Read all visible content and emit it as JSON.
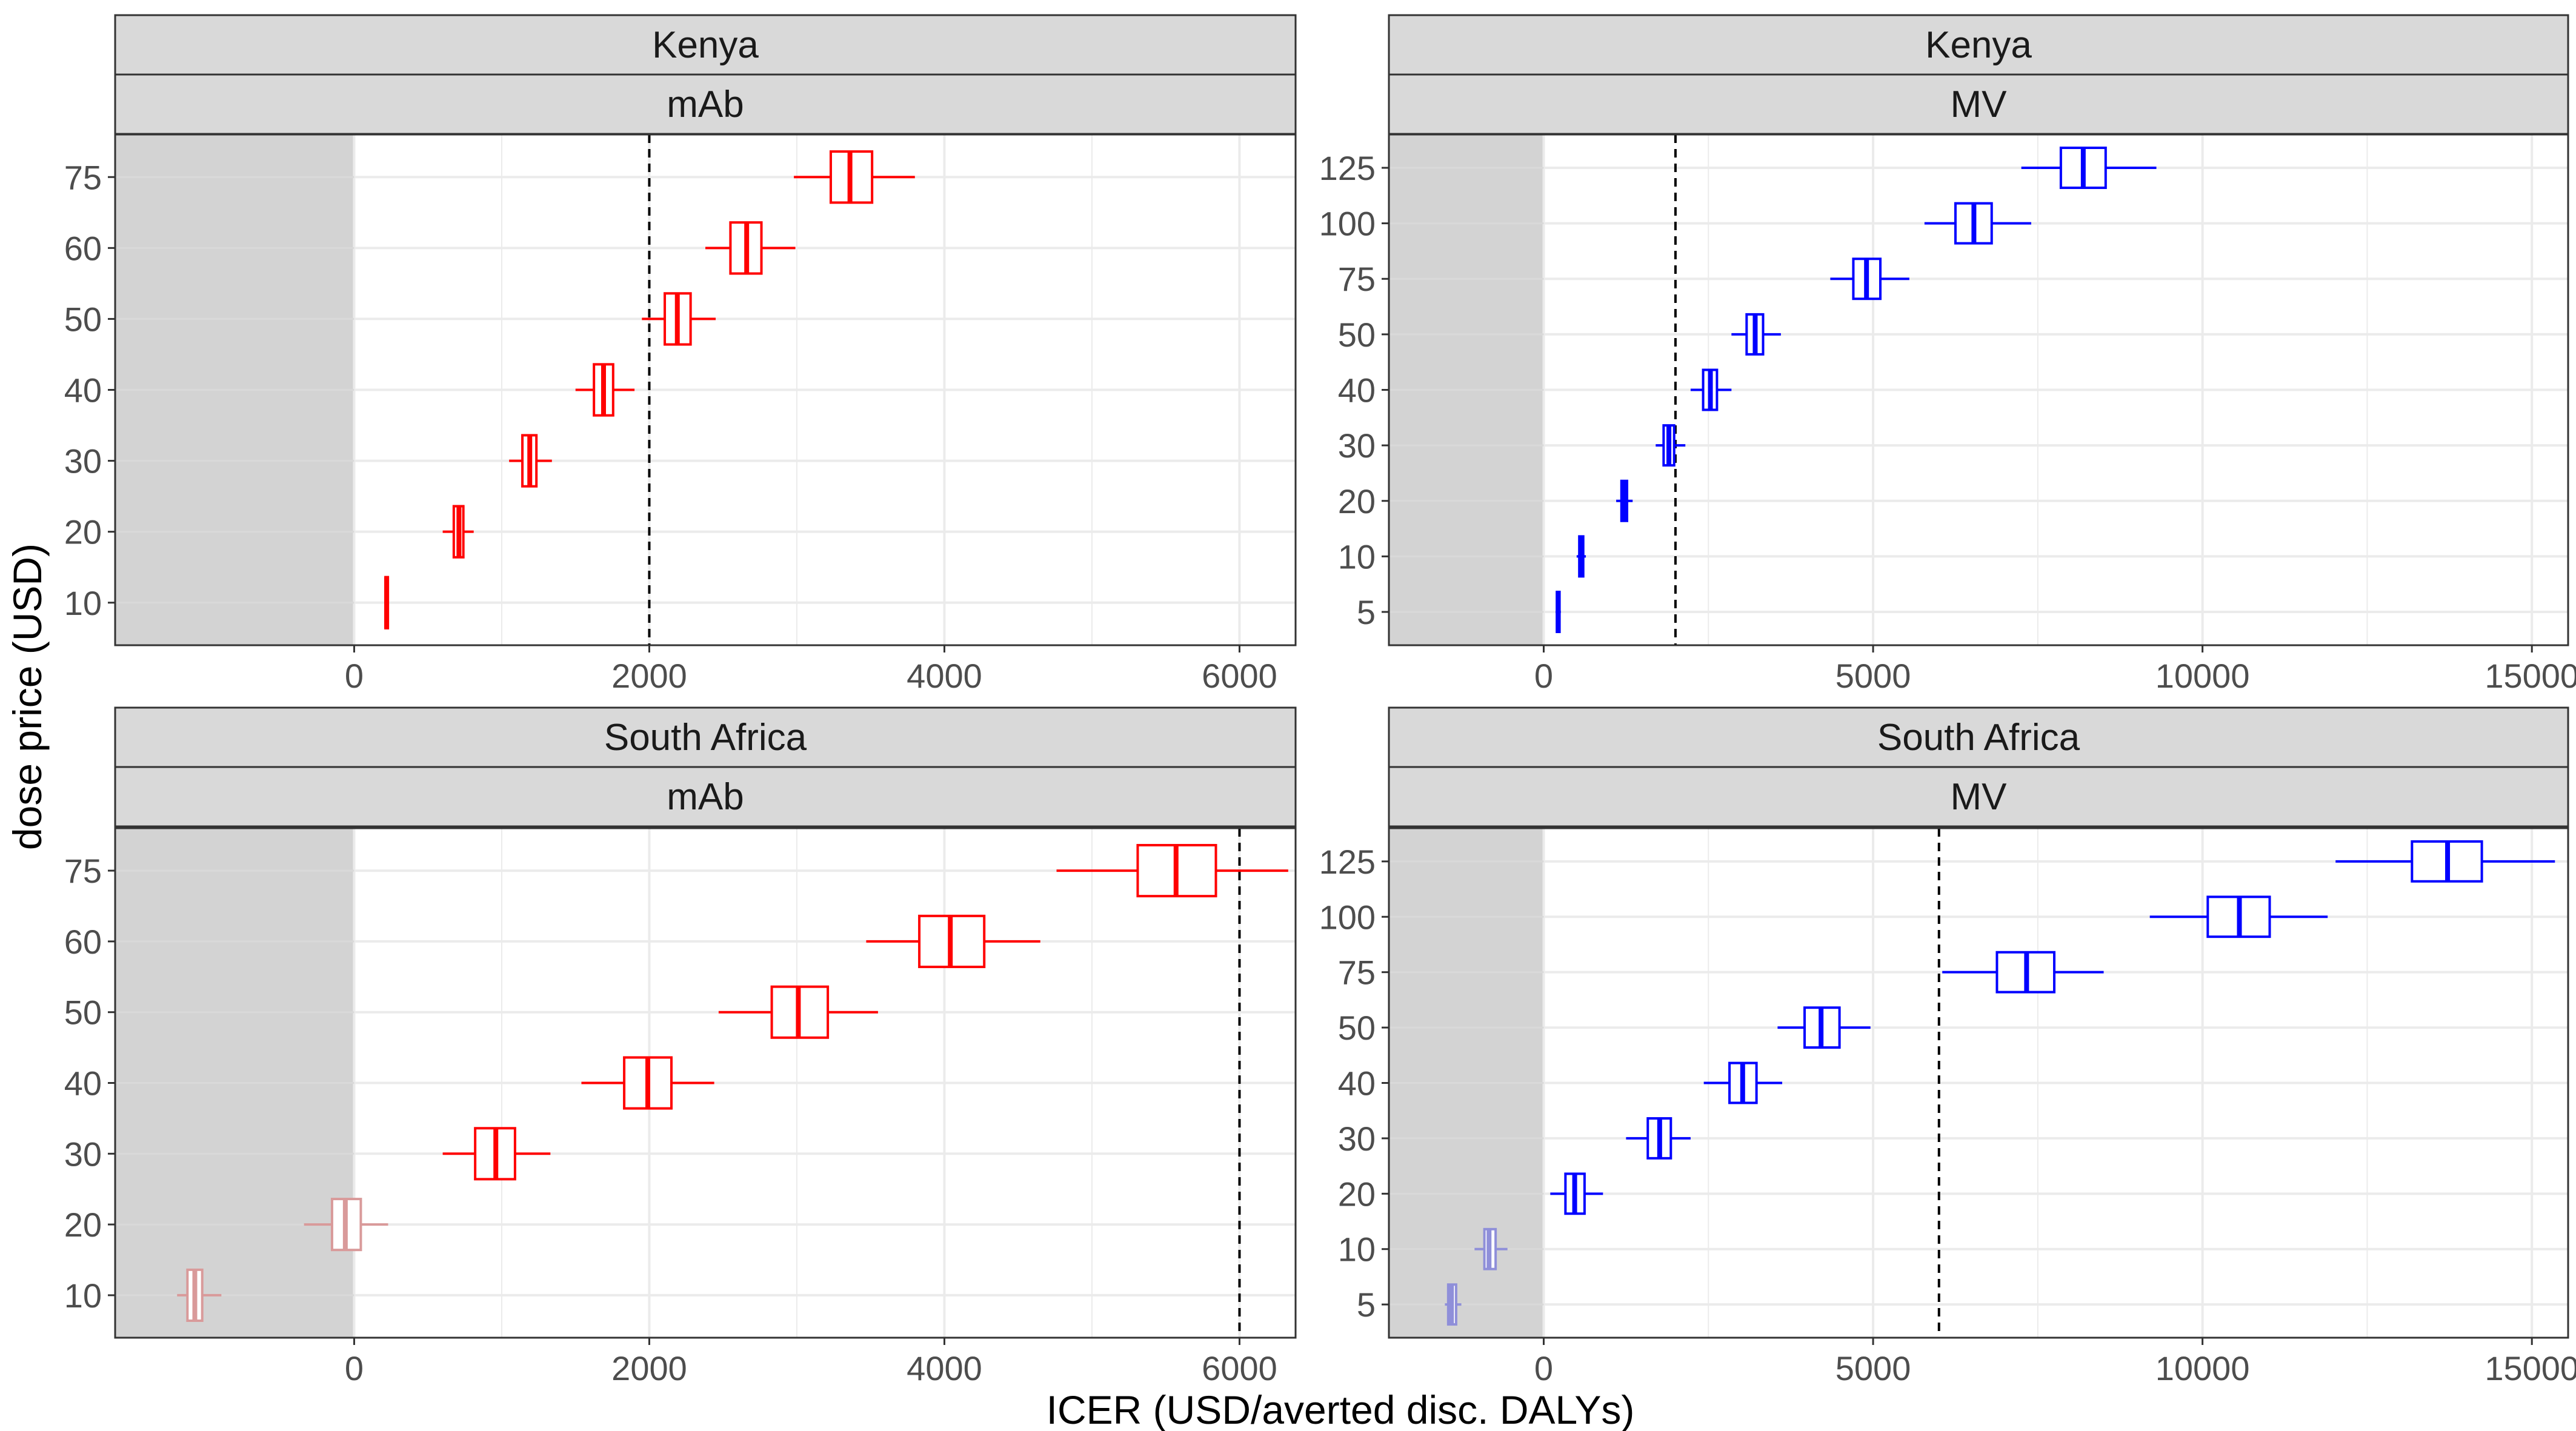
{
  "figure": {
    "xlabel": "ICER (USD/averted disc. DALYs)",
    "ylabel": "dose price (USD)"
  },
  "chart_data": [
    {
      "type": "boxplot",
      "country": "Kenya",
      "product": "mAb",
      "color": "#ff0000",
      "faded_color": "#d99a9a",
      "threshold": 2000,
      "xlim": [
        -1620,
        6380
      ],
      "x_ticks": [
        0,
        2000,
        4000,
        6000
      ],
      "y_categories": [
        "10",
        "20",
        "30",
        "40",
        "50",
        "60",
        "75"
      ],
      "boxes": [
        {
          "price": "10",
          "whisker_low": 205,
          "q1": 212,
          "median": 220,
          "q3": 228,
          "whisker_high": 235
        },
        {
          "price": "20",
          "whisker_low": 600,
          "q1": 675,
          "median": 710,
          "q3": 740,
          "whisker_high": 810
        },
        {
          "price": "30",
          "whisker_low": 1050,
          "q1": 1140,
          "median": 1190,
          "q3": 1235,
          "whisker_high": 1340
        },
        {
          "price": "40",
          "whisker_low": 1500,
          "q1": 1625,
          "median": 1690,
          "q3": 1755,
          "whisker_high": 1900
        },
        {
          "price": "50",
          "whisker_low": 1950,
          "q1": 2105,
          "median": 2190,
          "q3": 2280,
          "whisker_high": 2450
        },
        {
          "price": "60",
          "whisker_low": 2380,
          "q1": 2550,
          "median": 2660,
          "q3": 2760,
          "whisker_high": 2990
        },
        {
          "price": "75",
          "whisker_low": 2980,
          "q1": 3230,
          "median": 3360,
          "q3": 3510,
          "whisker_high": 3800
        }
      ]
    },
    {
      "type": "boxplot",
      "country": "Kenya",
      "product": "MV",
      "color": "#0000ff",
      "faded_color": "#8f8fd9",
      "threshold": 2000,
      "xlim": [
        -2350,
        15550
      ],
      "x_ticks": [
        0,
        5000,
        10000,
        15000
      ],
      "y_categories": [
        "5",
        "10",
        "20",
        "30",
        "40",
        "50",
        "75",
        "100",
        "125"
      ],
      "boxes": [
        {
          "price": "5",
          "whisker_low": 180,
          "q1": 200,
          "median": 220,
          "q3": 240,
          "whisker_high": 260
        },
        {
          "price": "10",
          "whisker_low": 500,
          "q1": 540,
          "median": 570,
          "q3": 600,
          "whisker_high": 640
        },
        {
          "price": "20",
          "whisker_low": 1100,
          "q1": 1180,
          "median": 1220,
          "q3": 1265,
          "whisker_high": 1350
        },
        {
          "price": "30",
          "whisker_low": 1700,
          "q1": 1820,
          "median": 1900,
          "q3": 1980,
          "whisker_high": 2150
        },
        {
          "price": "40",
          "whisker_low": 2230,
          "q1": 2420,
          "median": 2530,
          "q3": 2630,
          "whisker_high": 2850
        },
        {
          "price": "50",
          "whisker_low": 2850,
          "q1": 3080,
          "median": 3210,
          "q3": 3330,
          "whisker_high": 3600
        },
        {
          "price": "75",
          "whisker_low": 4350,
          "q1": 4700,
          "median": 4900,
          "q3": 5110,
          "whisker_high": 5550
        },
        {
          "price": "100",
          "whisker_low": 5780,
          "q1": 6250,
          "median": 6530,
          "q3": 6800,
          "whisker_high": 7400
        },
        {
          "price": "125",
          "whisker_low": 7250,
          "q1": 7850,
          "median": 8190,
          "q3": 8530,
          "whisker_high": 9300
        }
      ]
    },
    {
      "type": "boxplot",
      "country": "South Africa",
      "product": "mAb",
      "color": "#ff0000",
      "faded_color": "#d99a9a",
      "threshold": 6000,
      "xlim": [
        -1620,
        6380
      ],
      "x_ticks": [
        0,
        2000,
        4000,
        6000
      ],
      "y_categories": [
        "10",
        "20",
        "30",
        "40",
        "50",
        "60",
        "75"
      ],
      "boxes": [
        {
          "price": "10",
          "whisker_low": -1200,
          "q1": -1130,
          "median": -1080,
          "q3": -1030,
          "whisker_high": -900
        },
        {
          "price": "20",
          "whisker_low": -340,
          "q1": -150,
          "median": -60,
          "q3": 45,
          "whisker_high": 230
        },
        {
          "price": "30",
          "whisker_low": 600,
          "q1": 820,
          "median": 960,
          "q3": 1090,
          "whisker_high": 1330
        },
        {
          "price": "40",
          "whisker_low": 1540,
          "q1": 1830,
          "median": 1990,
          "q3": 2150,
          "whisker_high": 2440
        },
        {
          "price": "50",
          "whisker_low": 2470,
          "q1": 2830,
          "median": 3010,
          "q3": 3210,
          "whisker_high": 3550
        },
        {
          "price": "60",
          "whisker_low": 3470,
          "q1": 3830,
          "median": 4040,
          "q3": 4270,
          "whisker_high": 4650
        },
        {
          "price": "75",
          "whisker_low": 4760,
          "q1": 5310,
          "median": 5570,
          "q3": 5840,
          "whisker_high": 6330
        }
      ]
    },
    {
      "type": "boxplot",
      "country": "South Africa",
      "product": "MV",
      "color": "#0000ff",
      "faded_color": "#8f8fd9",
      "threshold": 6000,
      "xlim": [
        -2350,
        15550
      ],
      "x_ticks": [
        0,
        5000,
        10000,
        15000
      ],
      "y_categories": [
        "5",
        "10",
        "20",
        "30",
        "40",
        "50",
        "75",
        "100",
        "125"
      ],
      "boxes": [
        {
          "price": "5",
          "whisker_low": -1500,
          "q1": -1450,
          "median": -1400,
          "q3": -1330,
          "whisker_high": -1250
        },
        {
          "price": "10",
          "whisker_low": -1050,
          "q1": -900,
          "median": -830,
          "q3": -730,
          "whisker_high": -550
        },
        {
          "price": "20",
          "whisker_low": 100,
          "q1": 330,
          "median": 470,
          "q3": 620,
          "whisker_high": 900
        },
        {
          "price": "30",
          "whisker_low": 1250,
          "q1": 1580,
          "median": 1760,
          "q3": 1930,
          "whisker_high": 2230
        },
        {
          "price": "40",
          "whisker_low": 2430,
          "q1": 2820,
          "median": 3020,
          "q3": 3230,
          "whisker_high": 3620
        },
        {
          "price": "50",
          "whisker_low": 3550,
          "q1": 3960,
          "median": 4210,
          "q3": 4490,
          "whisker_high": 4960
        },
        {
          "price": "75",
          "whisker_low": 6050,
          "q1": 6880,
          "median": 7330,
          "q3": 7750,
          "whisker_high": 8500
        },
        {
          "price": "100",
          "whisker_low": 9200,
          "q1": 10080,
          "median": 10560,
          "q3": 11020,
          "whisker_high": 11900
        },
        {
          "price": "125",
          "whisker_low": 12020,
          "q1": 13180,
          "median": 13720,
          "q3": 14240,
          "whisker_high": 15350
        }
      ]
    }
  ]
}
